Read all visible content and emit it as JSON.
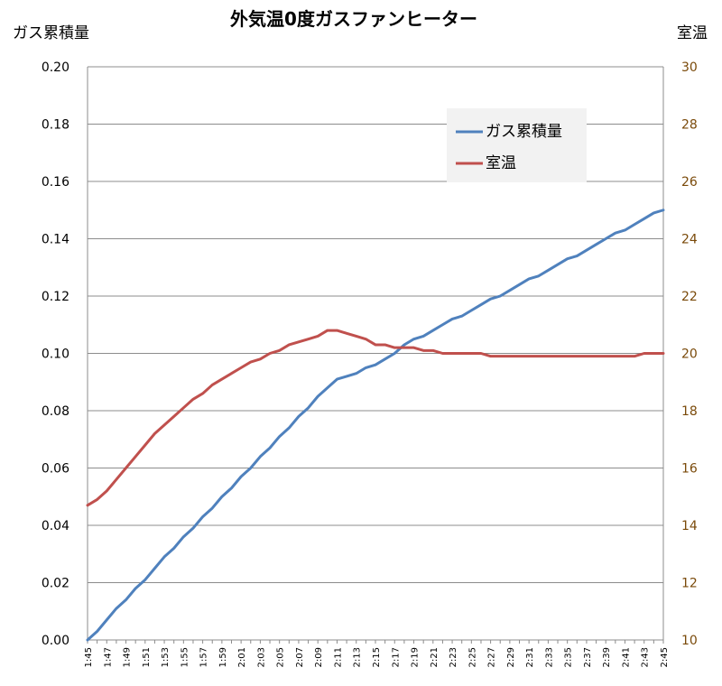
{
  "chart_data": {
    "type": "line",
    "title": "外気温0度ガスファンヒーター",
    "ylabel_left": "ガス累積量",
    "ylabel_right": "室温",
    "ylim_left": [
      0,
      0.2
    ],
    "ylim_right": [
      10,
      30
    ],
    "yticks_left": [
      "0.00",
      "0.02",
      "0.04",
      "0.06",
      "0.08",
      "0.10",
      "0.12",
      "0.14",
      "0.16",
      "0.18",
      "0.20"
    ],
    "yticks_right": [
      "10",
      "12",
      "14",
      "16",
      "18",
      "20",
      "22",
      "24",
      "26",
      "28",
      "30"
    ],
    "grid": true,
    "legend_position": "top-right",
    "x": [
      "1:45",
      "1:46",
      "1:47",
      "1:48",
      "1:49",
      "1:50",
      "1:51",
      "1:52",
      "1:53",
      "1:54",
      "1:55",
      "1:56",
      "1:57",
      "1:58",
      "1:59",
      "2:00",
      "2:01",
      "2:02",
      "2:03",
      "2:04",
      "2:05",
      "2:06",
      "2:07",
      "2:08",
      "2:09",
      "2:10",
      "2:11",
      "2:12",
      "2:13",
      "2:14",
      "2:15",
      "2:16",
      "2:17",
      "2:18",
      "2:19",
      "2:20",
      "2:21",
      "2:22",
      "2:23",
      "2:24",
      "2:25",
      "2:26",
      "2:27",
      "2:28",
      "2:29",
      "2:30",
      "2:31",
      "2:32",
      "2:33",
      "2:34",
      "2:35",
      "2:36",
      "2:37",
      "2:38",
      "2:39",
      "2:40",
      "2:41",
      "2:42",
      "2:43",
      "2:44",
      "2:45"
    ],
    "x_tick_labels": [
      "1:45",
      "1:47",
      "1:49",
      "1:51",
      "1:53",
      "1:55",
      "1:57",
      "1:59",
      "2:01",
      "2:03",
      "2:05",
      "2:07",
      "2:09",
      "2:11",
      "2:13",
      "2:15",
      "2:17",
      "2:19",
      "2:21",
      "2:23",
      "2:25",
      "2:27",
      "2:29",
      "2:31",
      "2:33",
      "2:35",
      "2:37",
      "2:39",
      "2:41",
      "2:43",
      "2:45"
    ],
    "series": [
      {
        "name": "ガス累積量",
        "axis": "left",
        "color": "#4f81bd",
        "values": [
          0.0,
          0.003,
          0.007,
          0.011,
          0.014,
          0.018,
          0.021,
          0.025,
          0.029,
          0.032,
          0.036,
          0.039,
          0.043,
          0.046,
          0.05,
          0.053,
          0.057,
          0.06,
          0.064,
          0.067,
          0.071,
          0.074,
          0.078,
          0.081,
          0.085,
          0.088,
          0.091,
          0.092,
          0.093,
          0.095,
          0.096,
          0.098,
          0.1,
          0.103,
          0.105,
          0.106,
          0.108,
          0.11,
          0.112,
          0.113,
          0.115,
          0.117,
          0.119,
          0.12,
          0.122,
          0.124,
          0.126,
          0.127,
          0.129,
          0.131,
          0.133,
          0.134,
          0.136,
          0.138,
          0.14,
          0.142,
          0.143,
          0.145,
          0.147,
          0.149,
          0.15
        ]
      },
      {
        "name": "室温",
        "axis": "right",
        "color": "#c0504d",
        "values": [
          14.7,
          14.9,
          15.2,
          15.6,
          16.0,
          16.4,
          16.8,
          17.2,
          17.5,
          17.8,
          18.1,
          18.4,
          18.6,
          18.9,
          19.1,
          19.3,
          19.5,
          19.7,
          19.8,
          20.0,
          20.1,
          20.3,
          20.4,
          20.5,
          20.6,
          20.8,
          20.8,
          20.7,
          20.6,
          20.5,
          20.3,
          20.3,
          20.2,
          20.2,
          20.2,
          20.1,
          20.1,
          20.0,
          20.0,
          20.0,
          20.0,
          20.0,
          19.9,
          19.9,
          19.9,
          19.9,
          19.9,
          19.9,
          19.9,
          19.9,
          19.9,
          19.9,
          19.9,
          19.9,
          19.9,
          19.9,
          19.9,
          19.9,
          20.0,
          20.0,
          20.0
        ]
      }
    ]
  },
  "colors": {
    "grid": "#8c8c8c",
    "axis": "#8c8c8c",
    "legend_bg": "#f2f2f2",
    "right_tick_text": "#7a4a0a"
  }
}
